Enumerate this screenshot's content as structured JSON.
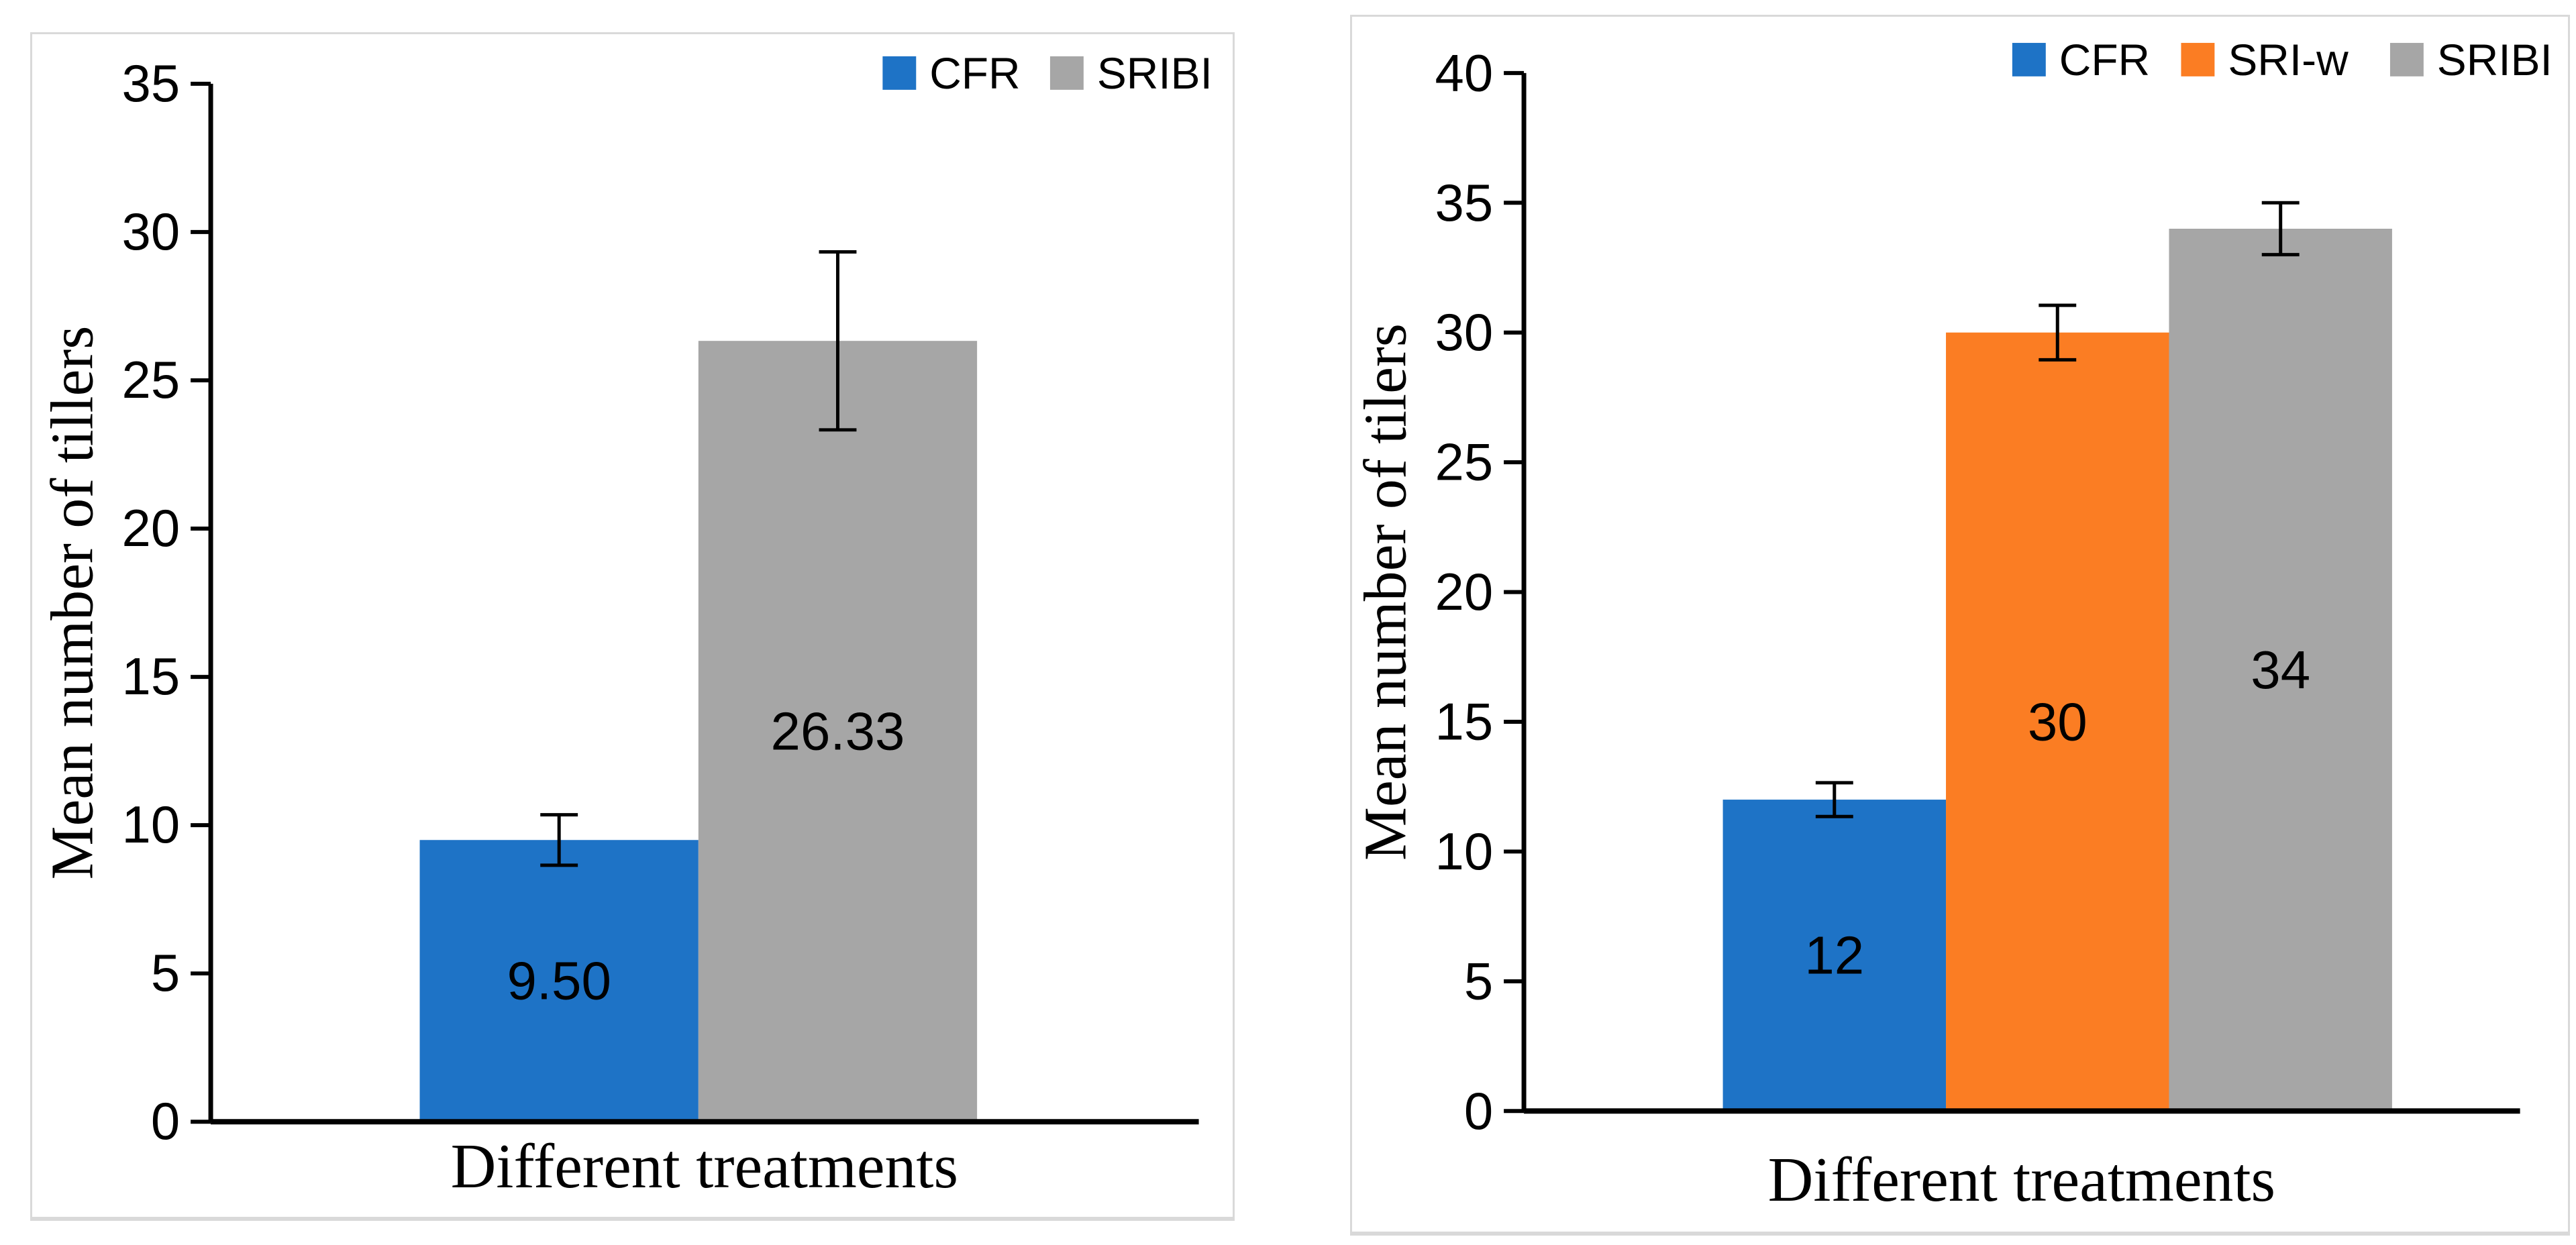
{
  "style": {
    "background": "#FFFFFF",
    "panel_border_color": "#D9D9D9",
    "axis_color": "#000000",
    "error_bar_color": "#000000",
    "bar_colors": {
      "CFR": "#1E73C6",
      "SRI-w": "#FB7D23",
      "SRIBI": "#A6A6A6"
    }
  },
  "chart_data": [
    {
      "type": "bar",
      "title": "",
      "categories": [
        "Different treatments"
      ],
      "xlabel": "Different treatments",
      "ylabel": "Mean number of tillers",
      "ylim": [
        0,
        35
      ],
      "yticks": [
        0,
        5,
        10,
        15,
        20,
        25,
        30,
        35
      ],
      "grid": false,
      "legend_position": "top-right",
      "legend": [
        "CFR",
        "SRIBI"
      ],
      "series": [
        {
          "name": "CFR",
          "value": 9.5,
          "label": "9.50",
          "error": 0.85,
          "color": "#1E73C6"
        },
        {
          "name": "SRIBI",
          "value": 26.33,
          "label": "26.33",
          "error": 3.0,
          "color": "#A6A6A6"
        }
      ]
    },
    {
      "type": "bar",
      "title": "",
      "categories": [
        "Different treatments"
      ],
      "xlabel": "Different treatments",
      "ylabel": "Mean number of tilers",
      "ylim": [
        0,
        40
      ],
      "yticks": [
        0,
        5,
        10,
        15,
        20,
        25,
        30,
        35,
        40
      ],
      "grid": false,
      "legend_position": "top-right",
      "legend": [
        "CFR",
        "SRI-w",
        "SRIBI"
      ],
      "series": [
        {
          "name": "CFR",
          "value": 12,
          "label": "12",
          "error": 0.65,
          "color": "#1E73C6"
        },
        {
          "name": "SRI-w",
          "value": 30,
          "label": "30",
          "error": 1.05,
          "color": "#FB7D23"
        },
        {
          "name": "SRIBI",
          "value": 34,
          "label": "34",
          "error": 1.0,
          "color": "#A6A6A6"
        }
      ]
    }
  ]
}
